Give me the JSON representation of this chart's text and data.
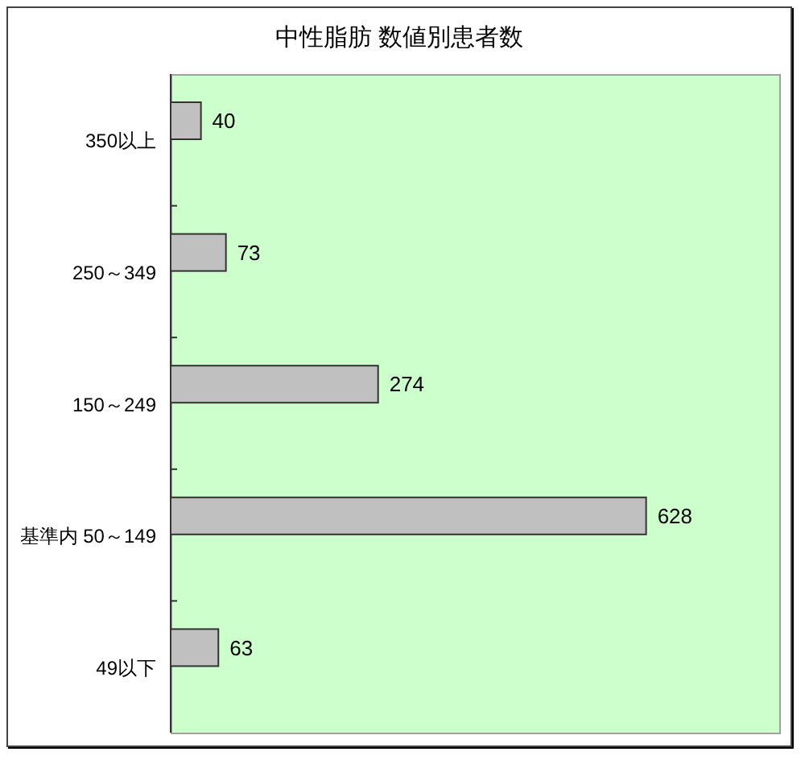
{
  "chart_data": {
    "type": "bar",
    "orientation": "horizontal",
    "title": "中性脂肪 数値別患者数",
    "categories": [
      "350以上",
      "250～349",
      "150～249",
      "基準内 50～149",
      "49以下"
    ],
    "values": [
      40,
      73,
      274,
      628,
      63
    ],
    "color": "#c0c0c0",
    "data_labels": true,
    "tick_labels": "y"
  }
}
